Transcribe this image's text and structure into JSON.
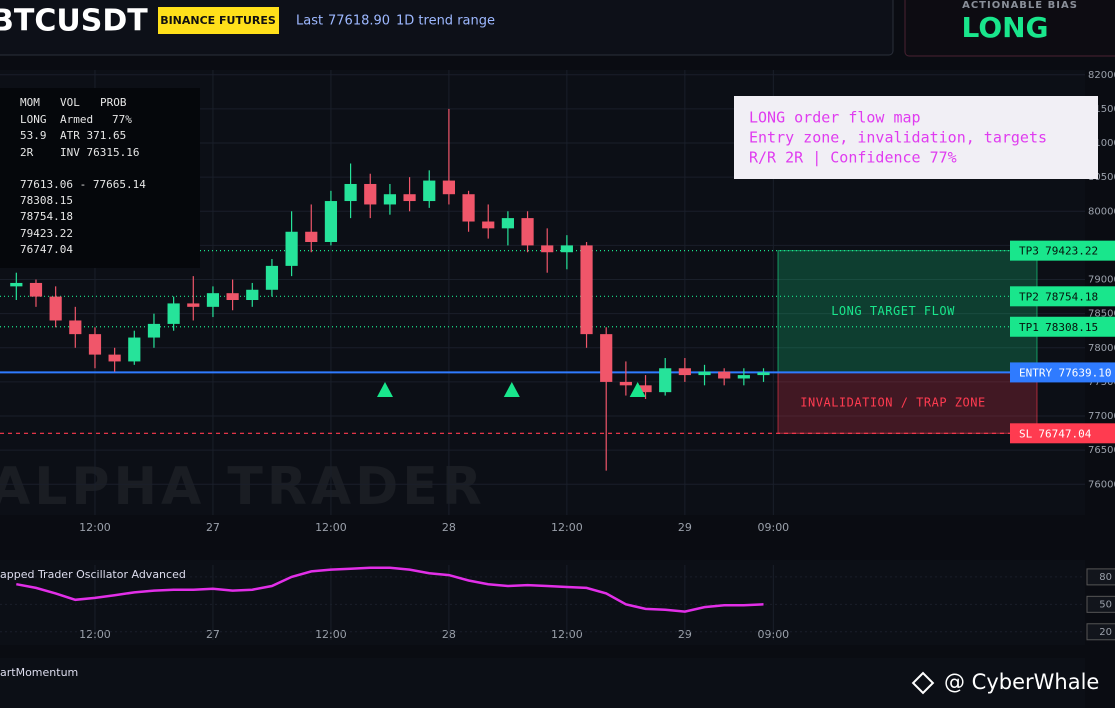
{
  "header": {
    "symbol": "BTCUSDT",
    "exchange": "BINANCE FUTURES",
    "last_label": "Last",
    "last_price": "77618.90",
    "range": "1D trend range"
  },
  "bias": {
    "title": "ACTIONABLE BIAS",
    "value": "LONG"
  },
  "info_panel": {
    "columns": [
      "MOM",
      "VOL",
      "PROB"
    ],
    "rows": [
      [
        "LONG",
        "Armed",
        "77%"
      ],
      [
        "53.9",
        "ATR 371.65"
      ],
      [
        "2R",
        "INV 76315.16"
      ]
    ],
    "levels": [
      "77613.06 - 77665.14",
      "78308.15",
      "78754.18",
      "79423.22",
      "76747.04"
    ]
  },
  "annotation": [
    "LONG order flow map",
    "Entry zone, invalidation, targets",
    "R/R 2R | Confidence 77%"
  ],
  "watermark": "ALPHA TRADER",
  "credit": "@ CyberWhale",
  "momentum_panel": {
    "title": "artMomentum"
  },
  "chart_data": [
    {
      "type": "candlestick",
      "x": [
        4,
        6,
        8,
        10,
        12,
        14,
        16,
        18,
        20,
        22,
        24,
        26,
        28,
        30,
        32,
        34,
        36,
        38,
        40,
        42,
        44,
        46,
        48,
        50,
        52,
        54,
        56,
        58,
        60,
        62,
        64,
        66,
        68,
        70,
        72,
        74,
        76,
        78,
        80
      ],
      "open": [
        78900,
        78950,
        78750,
        78400,
        78200,
        77900,
        77800,
        78150,
        78350,
        78650,
        78600,
        78800,
        78700,
        78850,
        79200,
        79700,
        79550,
        80150,
        80400,
        80100,
        80250,
        80150,
        80450,
        80250,
        79850,
        79750,
        79900,
        79500,
        79400,
        79500,
        78200,
        77500,
        77450,
        77350,
        77700,
        77600,
        77650,
        77550,
        77600
      ],
      "high": [
        79100,
        79000,
        78900,
        78600,
        78300,
        78000,
        78250,
        78500,
        78750,
        79050,
        78900,
        79000,
        78950,
        79300,
        80000,
        80100,
        80300,
        80700,
        80550,
        80400,
        80500,
        80600,
        81500,
        80300,
        80100,
        80000,
        80000,
        79750,
        79650,
        79550,
        78300,
        77800,
        77600,
        77850,
        77850,
        77750,
        77700,
        77700,
        77700
      ],
      "low": [
        78700,
        78600,
        78300,
        78000,
        77700,
        77650,
        77750,
        78000,
        78250,
        78400,
        78450,
        78550,
        78600,
        78750,
        79050,
        79400,
        79500,
        79900,
        79900,
        79950,
        80000,
        80050,
        80100,
        79700,
        79600,
        79500,
        79400,
        79100,
        79150,
        78000,
        76200,
        77300,
        77250,
        77300,
        77500,
        77450,
        77450,
        77450,
        77500
      ],
      "close": [
        78950,
        78750,
        78400,
        78200,
        77900,
        77800,
        78150,
        78350,
        78650,
        78600,
        78800,
        78700,
        78850,
        79200,
        79700,
        79550,
        80150,
        80400,
        80100,
        80250,
        80150,
        80450,
        80250,
        79850,
        79750,
        79900,
        79500,
        79400,
        79500,
        78200,
        77500,
        77450,
        77350,
        77700,
        77600,
        77650,
        77550,
        77600,
        77640
      ],
      "up_color": "#26e39a",
      "down_color": "#f0566a",
      "xlim": [
        2.34,
        112.7
      ],
      "xticks": [
        {
          "value": 12,
          "label": "12:00"
        },
        {
          "value": 24,
          "label": "27"
        },
        {
          "value": 36,
          "label": "12:00"
        },
        {
          "value": 48,
          "label": "28"
        },
        {
          "value": 60,
          "label": "12:00"
        },
        {
          "value": 72,
          "label": "29"
        },
        {
          "value": 81,
          "label": "09:00"
        }
      ],
      "ylim": [
        75550,
        82070
      ],
      "yticks": [
        76000,
        76500,
        77000,
        77500,
        78000,
        78500,
        79000,
        79500,
        80000,
        80500,
        81000,
        81500,
        82000
      ],
      "grid": true,
      "signal_x": [
        41.5,
        54.4,
        67.2
      ],
      "signal_color": "#19e68c",
      "levels": [
        {
          "name": "TP3",
          "value": 79423.22,
          "color": "#19e68c"
        },
        {
          "name": "TP2",
          "value": 78754.18,
          "color": "#19e68c"
        },
        {
          "name": "TP1",
          "value": 78308.15,
          "color": "#19e68c"
        },
        {
          "name": "ENTRY",
          "value": 77639.1,
          "label": "77639.10",
          "color": "#2f7bff"
        },
        {
          "name": "SL",
          "value": 76747.04,
          "color": "#ff3b50"
        }
      ],
      "zones": [
        {
          "label": "LONG TARGET FLOW",
          "from": 77639.1,
          "to": 79423.22,
          "color": "#19e68c"
        },
        {
          "label": "INVALIDATION / TRAP ZONE",
          "from": 76747.04,
          "to": 77639.1,
          "color": "#ff3b50"
        }
      ]
    },
    {
      "type": "line",
      "title": "apped Trader Oscillator Advanced",
      "x": [
        4,
        6,
        8,
        10,
        12,
        14,
        16,
        18,
        20,
        22,
        24,
        26,
        28,
        30,
        32,
        34,
        36,
        38,
        40,
        42,
        44,
        46,
        48,
        50,
        52,
        54,
        56,
        58,
        60,
        62,
        64,
        66,
        68,
        70,
        72,
        74,
        76,
        78,
        80
      ],
      "values": [
        72,
        68,
        62,
        55,
        57,
        60,
        63,
        65,
        66,
        66,
        67,
        65,
        66,
        70,
        80,
        86,
        88,
        89,
        90,
        90,
        88,
        84,
        82,
        76,
        72,
        70,
        71,
        70,
        69,
        68,
        62,
        50,
        45,
        44,
        42,
        47,
        49,
        49,
        50
      ],
      "color": "#e22fe8",
      "xlim": [
        2.34,
        112.7
      ],
      "xticks": [
        {
          "value": 12,
          "label": "12:00"
        },
        {
          "value": 24,
          "label": "27"
        },
        {
          "value": 36,
          "label": "12:00"
        },
        {
          "value": 48,
          "label": "28"
        },
        {
          "value": 60,
          "label": "12:00"
        },
        {
          "value": 72,
          "label": "29"
        },
        {
          "value": 81,
          "label": "09:00"
        }
      ],
      "ylim": [
        11,
        93
      ],
      "yticks": [
        20,
        50,
        80
      ]
    }
  ]
}
